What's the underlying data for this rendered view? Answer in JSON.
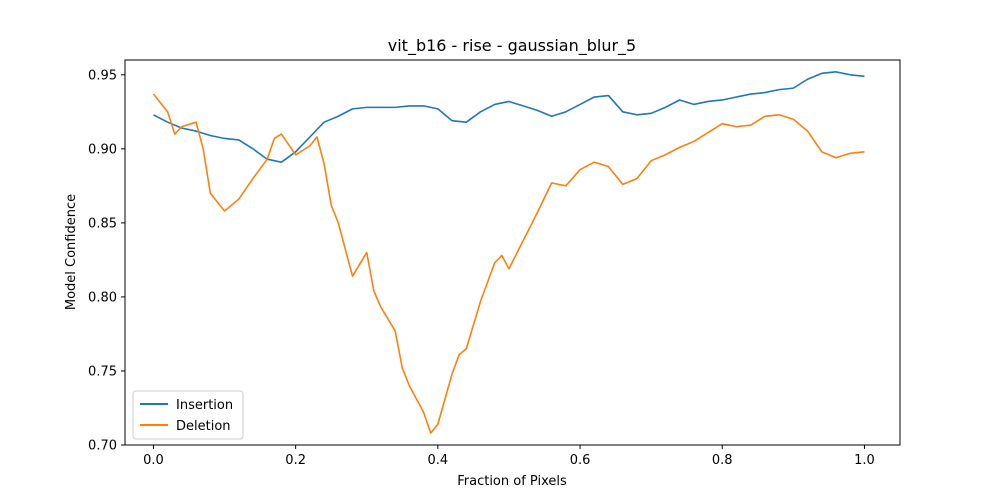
{
  "chart_data": {
    "type": "line",
    "title": "vit_b16 - rise - gaussian_blur_5",
    "xlabel": "Fraction of Pixels",
    "ylabel": "Model Confidence",
    "xlim": [
      -0.04,
      1.05
    ],
    "ylim": [
      0.7,
      0.96
    ],
    "xticks": [
      0.0,
      0.2,
      0.4,
      0.6,
      0.8,
      1.0
    ],
    "xtick_labels": [
      "0.0",
      "0.2",
      "0.4",
      "0.6",
      "0.8",
      "1.0"
    ],
    "yticks": [
      0.7,
      0.75,
      0.8,
      0.85,
      0.9,
      0.95
    ],
    "ytick_labels": [
      "0.70",
      "0.75",
      "0.80",
      "0.85",
      "0.90",
      "0.95"
    ],
    "grid": false,
    "legend_position": "lower-left",
    "series": [
      {
        "name": "Insertion",
        "color": "#1f77b4",
        "x": [
          0.0,
          0.02,
          0.04,
          0.06,
          0.08,
          0.1,
          0.12,
          0.14,
          0.16,
          0.18,
          0.2,
          0.22,
          0.24,
          0.26,
          0.28,
          0.3,
          0.32,
          0.34,
          0.36,
          0.38,
          0.4,
          0.42,
          0.44,
          0.46,
          0.48,
          0.5,
          0.52,
          0.54,
          0.56,
          0.58,
          0.6,
          0.62,
          0.64,
          0.66,
          0.68,
          0.7,
          0.72,
          0.74,
          0.76,
          0.78,
          0.8,
          0.82,
          0.84,
          0.86,
          0.88,
          0.9,
          0.92,
          0.94,
          0.96,
          0.98,
          1.0
        ],
        "y": [
          0.923,
          0.918,
          0.914,
          0.912,
          0.909,
          0.907,
          0.906,
          0.9,
          0.893,
          0.891,
          0.898,
          0.908,
          0.918,
          0.922,
          0.927,
          0.928,
          0.928,
          0.928,
          0.929,
          0.929,
          0.927,
          0.919,
          0.918,
          0.925,
          0.93,
          0.932,
          0.929,
          0.926,
          0.922,
          0.925,
          0.93,
          0.935,
          0.936,
          0.925,
          0.923,
          0.924,
          0.928,
          0.933,
          0.93,
          0.932,
          0.933,
          0.935,
          0.937,
          0.938,
          0.94,
          0.941,
          0.947,
          0.951,
          0.952,
          0.95,
          0.949
        ]
      },
      {
        "name": "Deletion",
        "color": "#ff7f0e",
        "x": [
          0.0,
          0.02,
          0.03,
          0.04,
          0.06,
          0.07,
          0.08,
          0.1,
          0.12,
          0.14,
          0.16,
          0.17,
          0.18,
          0.2,
          0.22,
          0.23,
          0.24,
          0.25,
          0.26,
          0.28,
          0.3,
          0.31,
          0.32,
          0.34,
          0.35,
          0.36,
          0.38,
          0.39,
          0.4,
          0.42,
          0.43,
          0.44,
          0.46,
          0.48,
          0.49,
          0.5,
          0.52,
          0.54,
          0.56,
          0.58,
          0.6,
          0.62,
          0.64,
          0.66,
          0.68,
          0.7,
          0.72,
          0.74,
          0.76,
          0.78,
          0.8,
          0.82,
          0.84,
          0.86,
          0.88,
          0.9,
          0.92,
          0.94,
          0.96,
          0.98,
          1.0
        ],
        "y": [
          0.937,
          0.925,
          0.91,
          0.915,
          0.918,
          0.9,
          0.87,
          0.858,
          0.866,
          0.88,
          0.893,
          0.907,
          0.91,
          0.896,
          0.902,
          0.908,
          0.89,
          0.862,
          0.85,
          0.814,
          0.83,
          0.804,
          0.793,
          0.777,
          0.752,
          0.74,
          0.722,
          0.708,
          0.714,
          0.748,
          0.761,
          0.765,
          0.797,
          0.823,
          0.828,
          0.819,
          0.838,
          0.857,
          0.877,
          0.875,
          0.886,
          0.891,
          0.888,
          0.876,
          0.88,
          0.892,
          0.896,
          0.901,
          0.905,
          0.911,
          0.917,
          0.915,
          0.916,
          0.922,
          0.923,
          0.92,
          0.912,
          0.898,
          0.894,
          0.897,
          0.898
        ]
      }
    ]
  }
}
